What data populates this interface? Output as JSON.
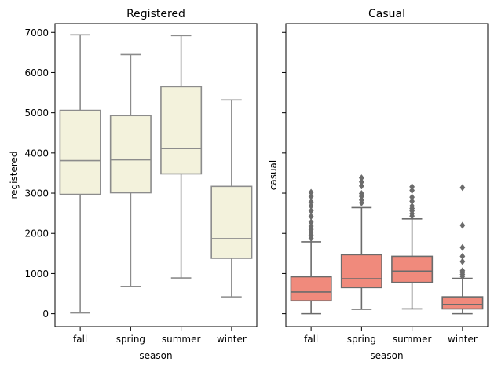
{
  "chart_data": [
    {
      "type": "box",
      "title": "Registered",
      "xlabel": "season",
      "ylabel": "registered",
      "categories": [
        "fall",
        "spring",
        "summer",
        "winter"
      ],
      "ylim": [
        -320,
        7220
      ],
      "yticks": [
        0,
        1000,
        2000,
        3000,
        4000,
        5000,
        6000,
        7000
      ],
      "colors": {
        "box_fill": "#f3f2dc",
        "line": "#8c8c8c"
      },
      "boxes": [
        {
          "category": "fall",
          "whisker_low": 20,
          "q1": 2970,
          "median": 3810,
          "q3": 5060,
          "whisker_high": 6940,
          "outliers": []
        },
        {
          "category": "spring",
          "whisker_low": 680,
          "q1": 3010,
          "median": 3830,
          "q3": 4930,
          "whisker_high": 6450,
          "outliers": []
        },
        {
          "category": "summer",
          "whisker_low": 890,
          "q1": 3480,
          "median": 4110,
          "q3": 5650,
          "whisker_high": 6920,
          "outliers": []
        },
        {
          "category": "winter",
          "whisker_low": 420,
          "q1": 1380,
          "median": 1870,
          "q3": 3170,
          "whisker_high": 5320,
          "outliers": []
        }
      ]
    },
    {
      "type": "box",
      "title": "Casual",
      "xlabel": "season",
      "ylabel": "casual",
      "categories": [
        "fall",
        "spring",
        "summer",
        "winter"
      ],
      "ylim": [
        -320,
        7220
      ],
      "shared_y": true,
      "colors": {
        "box_fill": "#f08a7c",
        "line": "#6b6b6b"
      },
      "boxes": [
        {
          "category": "fall",
          "whisker_low": 0,
          "q1": 320,
          "median": 540,
          "q3": 920,
          "whisker_high": 1790,
          "outliers": [
            1880,
            1960,
            2030,
            2100,
            2180,
            2280,
            2420,
            2560,
            2680,
            2780,
            2920,
            3020
          ]
        },
        {
          "category": "spring",
          "whisker_low": 110,
          "q1": 650,
          "median": 870,
          "q3": 1470,
          "whisker_high": 2640,
          "outliers": [
            2760,
            2830,
            2920,
            2990,
            3180,
            3280,
            3380
          ]
        },
        {
          "category": "summer",
          "whisker_low": 120,
          "q1": 780,
          "median": 1060,
          "q3": 1430,
          "whisker_high": 2360,
          "outliers": [
            2430,
            2490,
            2560,
            2620,
            2680,
            2800,
            2900,
            3070,
            3160
          ]
        },
        {
          "category": "winter",
          "whisker_low": 0,
          "q1": 120,
          "median": 230,
          "q3": 420,
          "whisker_high": 880,
          "outliers": [
            930,
            980,
            1030,
            1070,
            1300,
            1430,
            1650,
            2200,
            3140
          ]
        }
      ]
    }
  ]
}
